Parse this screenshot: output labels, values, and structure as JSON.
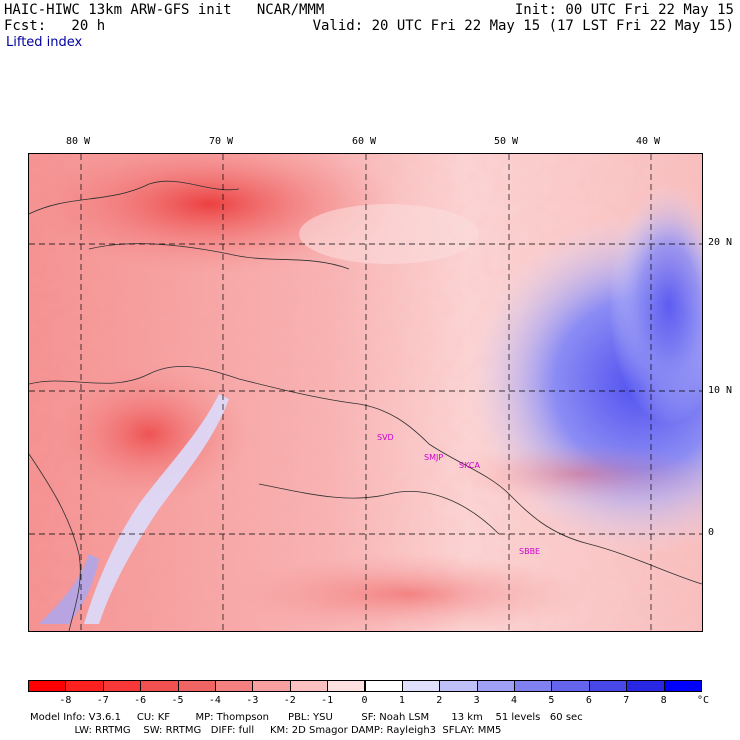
{
  "header": {
    "left_line1": "HAIC-HIWC 13km ARW-GFS init   NCAR/MMM",
    "left_line2": "Fcst:   20 h",
    "field": "Lifted index",
    "right_line1": "Init: 00 UTC Fri 22 May 15",
    "right_line2": "Valid: 20 UTC Fri 22 May 15 (17 LST Fri 22 May 15)"
  },
  "lon_labels": [
    "80 W",
    "70 W",
    "60 W",
    "50 W",
    "40 W"
  ],
  "lat_labels": [
    "20 N",
    "10 N",
    "0"
  ],
  "stations": [
    "SVD",
    "SMJP",
    "SKCA",
    "SBBE"
  ],
  "colorbar": {
    "labels": [
      "-8",
      "-7",
      "-6",
      "-5",
      "-4",
      "-3",
      "-2",
      "-1",
      "0",
      "1",
      "2",
      "3",
      "4",
      "5",
      "6",
      "7",
      "8"
    ],
    "unit": "°C",
    "colors": [
      "#ff0000",
      "#ff2020",
      "#f83838",
      "#f05050",
      "#f06464",
      "#f48080",
      "#f8a0a0",
      "#fcc0c0",
      "#fde0e0",
      "#ffffff",
      "#e0e0fc",
      "#c0c0f8",
      "#a0a0f4",
      "#8080f0",
      "#6464ec",
      "#4848e8",
      "#2828e4",
      "#0000ff"
    ]
  },
  "model_info": {
    "line1": "Model Info: V3.6.1     CU: KF        MP: Thompson      PBL: YSU         SF: Noah LSM       13 km    51 levels   60 sec",
    "line2": "              LW: RRTMG    SW: RRTMG   DIFF: full     KM: 2D Smagor DAMP: Rayleigh3  SFLAY: MM5"
  }
}
